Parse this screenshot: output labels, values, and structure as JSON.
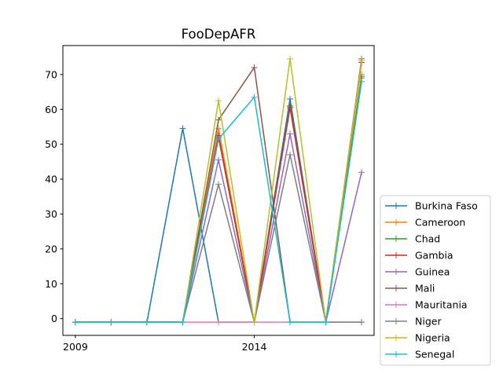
{
  "chart_data": {
    "type": "line",
    "title": "FooDepAFR",
    "xlabel": "",
    "ylabel": "",
    "x": [
      2009,
      2010,
      2011,
      2012,
      2013,
      2014,
      2015,
      2016,
      2017
    ],
    "xlim": [
      2008.65,
      2017.35
    ],
    "ylim": [
      -4.8,
      78.3
    ],
    "x_ticks": [
      2009,
      2014
    ],
    "x_tick_labels": [
      "2009",
      "2014"
    ],
    "y_ticks": [
      0,
      10,
      20,
      30,
      40,
      50,
      60,
      70
    ],
    "y_tick_labels": [
      "0",
      "10",
      "20",
      "30",
      "40",
      "50",
      "60",
      "70"
    ],
    "grid": false,
    "legend_position": "lower-right, outside plot",
    "series": [
      {
        "name": "Burkina Faso",
        "color": "#1f77b4",
        "values": [
          -1,
          -1,
          -1,
          54.5,
          -1,
          -1,
          63,
          -1,
          69.5
        ]
      },
      {
        "name": "Cameroon",
        "color": "#ff7f0e",
        "values": [
          -1,
          -1,
          -1,
          -1,
          54.5,
          -1,
          61,
          -1,
          70
        ]
      },
      {
        "name": "Chad",
        "color": "#2ca02c",
        "values": [
          -1,
          -1,
          -1,
          -1,
          52,
          -1,
          61,
          -1,
          69
        ]
      },
      {
        "name": "Gambia",
        "color": "#d62728",
        "values": [
          -1,
          -1,
          -1,
          -1,
          52.5,
          -1,
          60.5,
          -1,
          73.5
        ]
      },
      {
        "name": "Guinea",
        "color": "#9467bd",
        "values": [
          -1,
          -1,
          -1,
          -1,
          45.5,
          -1,
          53,
          -1,
          42
        ]
      },
      {
        "name": "Mali",
        "color": "#8c564b",
        "values": [
          -1,
          -1,
          -1,
          -1,
          57,
          72,
          -1,
          -1,
          74.5
        ]
      },
      {
        "name": "Mauritania",
        "color": "#e377c2",
        "values": [
          -1,
          -1,
          -1,
          -1,
          -1,
          -1,
          -1,
          -1,
          -1
        ]
      },
      {
        "name": "Niger",
        "color": "#7f7f7f",
        "values": [
          -1,
          -1,
          -1,
          -1,
          38.5,
          -1,
          47,
          -1,
          -1
        ]
      },
      {
        "name": "Nigeria",
        "color": "#bcbd22",
        "values": [
          -1,
          -1,
          -1,
          -1,
          62.5,
          -1,
          74.5,
          -1,
          74
        ]
      },
      {
        "name": "Senegal",
        "color": "#17becf",
        "values": [
          -1,
          -1,
          -1,
          -1,
          51.5,
          63.5,
          -1,
          -1,
          68
        ]
      }
    ]
  }
}
